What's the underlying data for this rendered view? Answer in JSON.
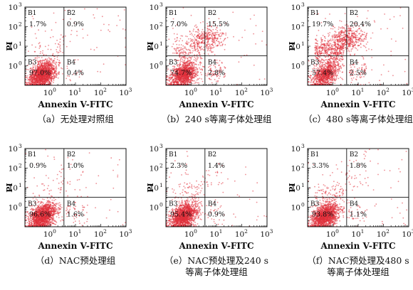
{
  "colors": {
    "dots": "#e0303a",
    "frame": "#111111",
    "background": "#ffffff"
  },
  "chart_data": [
    {
      "type": "scatter",
      "title": "",
      "xlabel": "Annexin V-FITC",
      "ylabel": "PI",
      "caption_line1": "（a）无处理对照组",
      "caption_line2": "",
      "x_scale": "log",
      "y_scale": "log",
      "xlim": [
        0.1,
        1000
      ],
      "ylim": [
        0.1,
        1000
      ],
      "x_ticks": [
        "10",
        "10",
        "10",
        "10"
      ],
      "x_tick_exp": [
        "0",
        "1",
        "2",
        "3"
      ],
      "y_ticks": [
        "10",
        "10",
        "10",
        "10"
      ],
      "y_tick_exp": [
        "0",
        "1",
        "2",
        "3"
      ],
      "gates": {
        "x": 3.5,
        "y": 3.2
      },
      "quadrants": [
        {
          "label": "B1",
          "value": "1.7%"
        },
        {
          "label": "B2",
          "value": "0.9%"
        },
        {
          "label": "B3",
          "value": "97.0%"
        },
        {
          "label": "B4",
          "value": "0.4%"
        }
      ]
    },
    {
      "type": "scatter",
      "title": "",
      "xlabel": "Annexin V-FITC",
      "ylabel": "PI",
      "caption_line1": "（b）240 s等离子体处理组",
      "caption_line2": "",
      "x_scale": "log",
      "y_scale": "log",
      "xlim": [
        0.1,
        1000
      ],
      "ylim": [
        0.1,
        1000
      ],
      "x_ticks": [
        "10",
        "10",
        "10",
        "10"
      ],
      "x_tick_exp": [
        "0",
        "1",
        "2",
        "3"
      ],
      "y_ticks": [
        "10",
        "10",
        "10",
        "10"
      ],
      "y_tick_exp": [
        "0",
        "1",
        "2",
        "3"
      ],
      "gates": {
        "x": 3.5,
        "y": 3.2
      },
      "quadrants": [
        {
          "label": "B1",
          "value": "7.0%"
        },
        {
          "label": "B2",
          "value": "15.5%"
        },
        {
          "label": "B3",
          "value": "74.7%"
        },
        {
          "label": "B4",
          "value": "2.8%"
        }
      ]
    },
    {
      "type": "scatter",
      "title": "",
      "xlabel": "Annexin V-FITC",
      "ylabel": "PI",
      "caption_line1": "（c）480 s等离子体处理组",
      "caption_line2": "",
      "x_scale": "log",
      "y_scale": "log",
      "xlim": [
        0.1,
        1000
      ],
      "ylim": [
        0.1,
        1000
      ],
      "x_ticks": [
        "10",
        "10",
        "10",
        "10"
      ],
      "x_tick_exp": [
        "0",
        "1",
        "2",
        "3"
      ],
      "y_ticks": [
        "10",
        "10",
        "10",
        "10"
      ],
      "y_tick_exp": [
        "0",
        "1",
        "2",
        "3"
      ],
      "gates": {
        "x": 3.5,
        "y": 3.2
      },
      "quadrants": [
        {
          "label": "B1",
          "value": "19.7%"
        },
        {
          "label": "B2",
          "value": "20.4%"
        },
        {
          "label": "B3",
          "value": "57.4%"
        },
        {
          "label": "B4",
          "value": "2.5%"
        }
      ]
    },
    {
      "type": "scatter",
      "title": "",
      "xlabel": "Annexin V-FITC",
      "ylabel": "PI",
      "caption_line1": "（d）NAC预处理组",
      "caption_line2": "",
      "x_scale": "log",
      "y_scale": "log",
      "xlim": [
        0.1,
        1000
      ],
      "ylim": [
        0.1,
        1000
      ],
      "x_ticks": [
        "10",
        "10",
        "10",
        "10"
      ],
      "x_tick_exp": [
        "0",
        "1",
        "2",
        "3"
      ],
      "y_ticks": [
        "10",
        "10",
        "10",
        "10"
      ],
      "y_tick_exp": [
        "0",
        "1",
        "2",
        "3"
      ],
      "gates": {
        "x": 3.5,
        "y": 3.2
      },
      "quadrants": [
        {
          "label": "B1",
          "value": "0.9%"
        },
        {
          "label": "B2",
          "value": "1.0%"
        },
        {
          "label": "B3",
          "value": "96.6%"
        },
        {
          "label": "B4",
          "value": "1.6%"
        }
      ]
    },
    {
      "type": "scatter",
      "title": "",
      "xlabel": "Annexin V-FITC",
      "ylabel": "PI",
      "caption_line1": "（e）NAC预处理及240 s",
      "caption_line2": "等离子体处理组",
      "x_scale": "log",
      "y_scale": "log",
      "xlim": [
        0.1,
        1000
      ],
      "ylim": [
        0.1,
        1000
      ],
      "x_ticks": [
        "10",
        "10",
        "10",
        "10"
      ],
      "x_tick_exp": [
        "0",
        "1",
        "2",
        "3"
      ],
      "y_ticks": [
        "10",
        "10",
        "10",
        "10"
      ],
      "y_tick_exp": [
        "0",
        "1",
        "2",
        "3"
      ],
      "gates": {
        "x": 3.5,
        "y": 3.2
      },
      "quadrants": [
        {
          "label": "B1",
          "value": "2.3%"
        },
        {
          "label": "B2",
          "value": "1.4%"
        },
        {
          "label": "B3",
          "value": "95.4%"
        },
        {
          "label": "B4",
          "value": "0.9%"
        }
      ]
    },
    {
      "type": "scatter",
      "title": "",
      "xlabel": "Annexin V-FITC",
      "ylabel": "PI",
      "caption_line1": "（f）NAC预处理及480 s",
      "caption_line2": "等离子体处理组",
      "x_scale": "log",
      "y_scale": "log",
      "xlim": [
        0.1,
        1000
      ],
      "ylim": [
        0.1,
        1000
      ],
      "x_ticks": [
        "10",
        "10",
        "10",
        "10"
      ],
      "x_tick_exp": [
        "0",
        "1",
        "2",
        "3"
      ],
      "y_ticks": [
        "10",
        "10",
        "10",
        "10"
      ],
      "y_tick_exp": [
        "0",
        "1",
        "2",
        "3"
      ],
      "gates": {
        "x": 3.5,
        "y": 3.2
      },
      "quadrants": [
        {
          "label": "B1",
          "value": "3.3%"
        },
        {
          "label": "B2",
          "value": "1.8%"
        },
        {
          "label": "B3",
          "value": "93.8%"
        },
        {
          "label": "B4",
          "value": "1.1%"
        }
      ]
    }
  ]
}
